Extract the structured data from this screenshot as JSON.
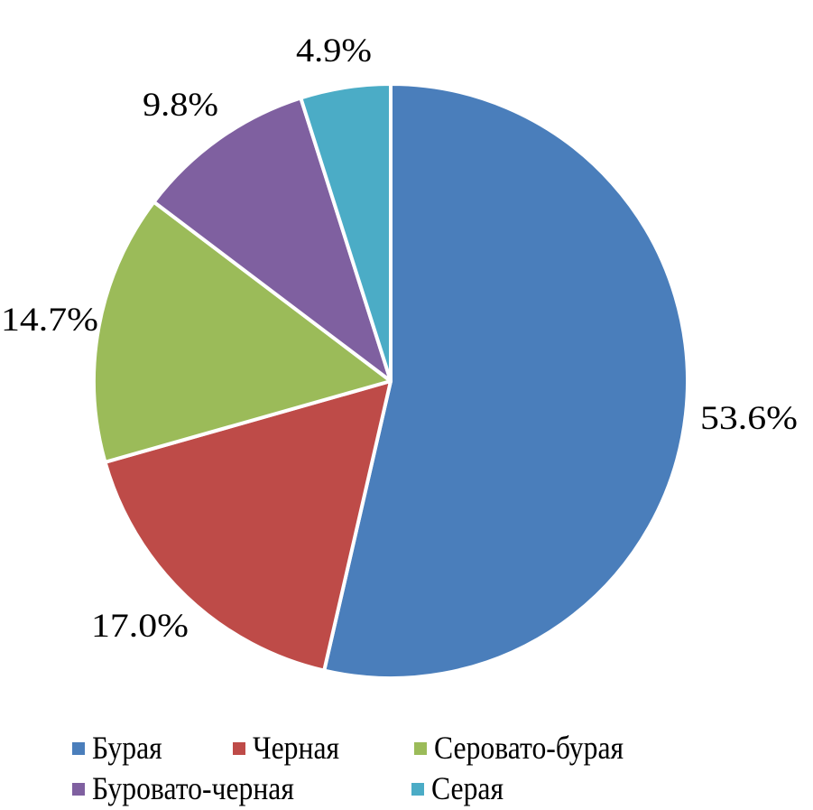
{
  "chart_data": {
    "type": "pie",
    "start_angle": "12 o'clock",
    "direction": "clockwise",
    "categories": [
      "Бурая",
      "Черная",
      "Серовато-бурая",
      "Буровато-черная",
      "Серая"
    ],
    "values": [
      53.6,
      17.0,
      14.7,
      9.8,
      4.9
    ],
    "data_labels": [
      "53.6%",
      "17.0%",
      "14.7%",
      "9.8%",
      "4.9%"
    ],
    "colors": [
      "#4A7EBB",
      "#BE4B48",
      "#9BBB59",
      "#7F60A0",
      "#4BACC6"
    ],
    "legend_position": "bottom"
  }
}
